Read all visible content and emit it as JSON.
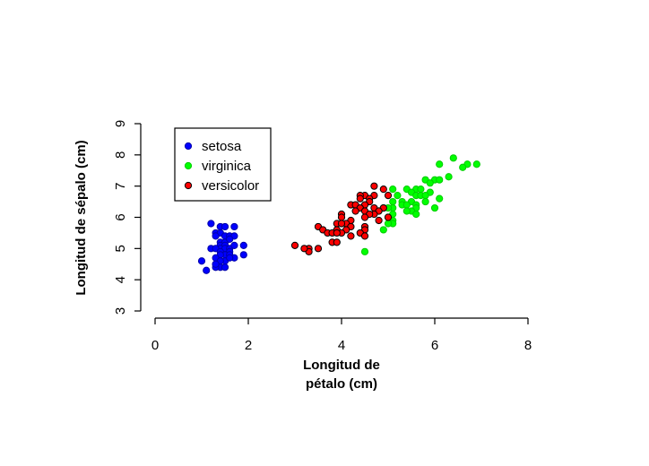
{
  "chart_data": {
    "type": "scatter",
    "xlabel_lines": [
      "Longitud de",
      "pétalo (cm)"
    ],
    "ylabel": "Longitud de sépalo (cm)",
    "xlim": [
      0,
      8
    ],
    "ylim": [
      3,
      9
    ],
    "xticks": [
      "0",
      "2",
      "4",
      "6",
      "8"
    ],
    "yticks": [
      "3",
      "4",
      "5",
      "6",
      "7",
      "8",
      "9"
    ],
    "grid": false,
    "legend_position": "top-left",
    "series": [
      {
        "name": "setosa",
        "color": "#0000ff",
        "points": [
          [
            1.2,
            5.8
          ],
          [
            1.4,
            5.7
          ],
          [
            1.5,
            5.7
          ],
          [
            1.7,
            5.7
          ],
          [
            1.3,
            5.5
          ],
          [
            1.4,
            5.5
          ],
          [
            1.5,
            5.4
          ],
          [
            1.6,
            5.4
          ],
          [
            1.7,
            5.4
          ],
          [
            1.3,
            5.4
          ],
          [
            1.4,
            5.2
          ],
          [
            1.5,
            5.2
          ],
          [
            1.6,
            5.3
          ],
          [
            1.4,
            5.1
          ],
          [
            1.5,
            5.1
          ],
          [
            1.4,
            5.0
          ],
          [
            1.5,
            5.0
          ],
          [
            1.6,
            5.0
          ],
          [
            1.2,
            5.0
          ],
          [
            1.3,
            5.0
          ],
          [
            1.9,
            5.1
          ],
          [
            1.7,
            5.1
          ],
          [
            1.6,
            4.9
          ],
          [
            1.4,
            4.9
          ],
          [
            1.5,
            4.8
          ],
          [
            1.6,
            4.8
          ],
          [
            1.4,
            4.8
          ],
          [
            1.9,
            4.8
          ],
          [
            1.7,
            4.7
          ],
          [
            1.3,
            4.7
          ],
          [
            1.5,
            4.6
          ],
          [
            1.4,
            4.6
          ],
          [
            1.6,
            4.7
          ],
          [
            1.3,
            4.5
          ],
          [
            1.4,
            4.4
          ],
          [
            1.3,
            4.4
          ],
          [
            1.5,
            4.4
          ],
          [
            1.0,
            4.6
          ],
          [
            1.1,
            4.3
          ],
          [
            1.3,
            4.5
          ]
        ]
      },
      {
        "name": "virginica",
        "color": "#00ff00",
        "points": [
          [
            6.4,
            7.9
          ],
          [
            6.7,
            7.7
          ],
          [
            6.9,
            7.7
          ],
          [
            6.1,
            7.7
          ],
          [
            6.6,
            7.6
          ],
          [
            6.3,
            7.3
          ],
          [
            6.0,
            7.2
          ],
          [
            5.8,
            7.2
          ],
          [
            6.1,
            7.2
          ],
          [
            5.9,
            7.1
          ],
          [
            5.6,
            6.9
          ],
          [
            5.7,
            6.9
          ],
          [
            5.1,
            6.9
          ],
          [
            5.4,
            6.9
          ],
          [
            5.5,
            6.8
          ],
          [
            5.9,
            6.8
          ],
          [
            5.6,
            6.7
          ],
          [
            5.7,
            6.7
          ],
          [
            5.8,
            6.7
          ],
          [
            5.2,
            6.7
          ],
          [
            6.1,
            6.6
          ],
          [
            5.3,
            6.5
          ],
          [
            5.1,
            6.5
          ],
          [
            5.5,
            6.5
          ],
          [
            5.8,
            6.5
          ],
          [
            5.6,
            6.4
          ],
          [
            5.3,
            6.4
          ],
          [
            5.4,
            6.4
          ],
          [
            5.6,
            6.3
          ],
          [
            5.1,
            6.3
          ],
          [
            6.0,
            6.3
          ],
          [
            4.9,
            6.3
          ],
          [
            5.0,
            6.3
          ],
          [
            5.5,
            6.2
          ],
          [
            5.4,
            6.2
          ],
          [
            4.8,
            6.2
          ],
          [
            5.1,
            6.1
          ],
          [
            5.6,
            6.1
          ],
          [
            5.0,
            6.0
          ],
          [
            5.1,
            5.9
          ],
          [
            5.1,
            5.8
          ],
          [
            5.0,
            5.8
          ],
          [
            4.9,
            5.6
          ],
          [
            4.5,
            4.9
          ]
        ]
      },
      {
        "name": "versicolor",
        "color": "#ff0000",
        "points": [
          [
            4.7,
            7.0
          ],
          [
            4.9,
            6.9
          ],
          [
            4.5,
            6.7
          ],
          [
            4.4,
            6.7
          ],
          [
            4.7,
            6.7
          ],
          [
            5.0,
            6.7
          ],
          [
            4.6,
            6.6
          ],
          [
            4.4,
            6.6
          ],
          [
            4.6,
            6.5
          ],
          [
            4.2,
            6.4
          ],
          [
            4.5,
            6.4
          ],
          [
            4.3,
            6.4
          ],
          [
            4.7,
            6.3
          ],
          [
            4.4,
            6.3
          ],
          [
            4.9,
            6.3
          ],
          [
            4.5,
            6.2
          ],
          [
            4.3,
            6.2
          ],
          [
            4.8,
            6.2
          ],
          [
            4.0,
            6.1
          ],
          [
            4.7,
            6.1
          ],
          [
            4.6,
            6.1
          ],
          [
            4.5,
            6.0
          ],
          [
            5.0,
            6.0
          ],
          [
            4.0,
            6.0
          ],
          [
            4.2,
            5.9
          ],
          [
            4.8,
            5.9
          ],
          [
            4.1,
            5.8
          ],
          [
            3.9,
            5.8
          ],
          [
            4.0,
            5.8
          ],
          [
            4.5,
            5.7
          ],
          [
            4.2,
            5.7
          ],
          [
            4.1,
            5.6
          ],
          [
            3.5,
            5.7
          ],
          [
            3.9,
            5.6
          ],
          [
            4.5,
            5.6
          ],
          [
            3.6,
            5.6
          ],
          [
            4.0,
            5.5
          ],
          [
            3.7,
            5.5
          ],
          [
            3.8,
            5.5
          ],
          [
            4.4,
            5.5
          ],
          [
            3.9,
            5.5
          ],
          [
            4.2,
            5.4
          ],
          [
            3.5,
            5.0
          ],
          [
            3.3,
            5.0
          ],
          [
            3.3,
            4.9
          ],
          [
            3.8,
            5.2
          ],
          [
            3.0,
            5.1
          ],
          [
            3.9,
            5.2
          ],
          [
            4.5,
            5.4
          ],
          [
            3.2,
            5.0
          ]
        ]
      }
    ]
  }
}
